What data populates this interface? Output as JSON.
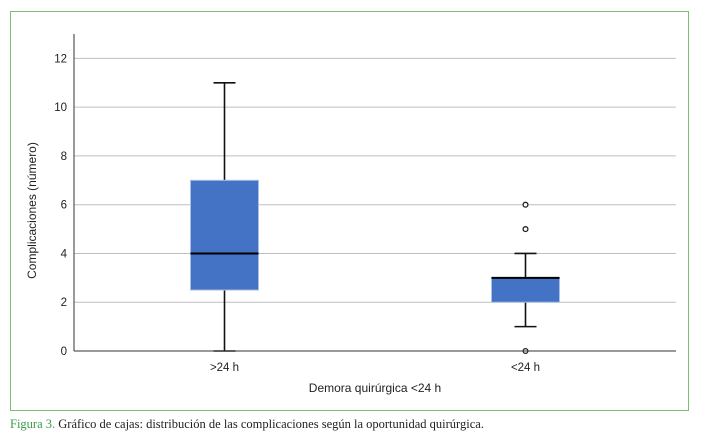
{
  "caption": {
    "label": "Figura 3.",
    "text": " Gráfico de cajas: distribución de las complicaciones según la oportunidad quirúrgica."
  },
  "colors": {
    "frame": "#7bbf72",
    "box": "#4472c4",
    "grid": "#bfbfbf",
    "caption_label": "#3a9a4a"
  },
  "chart_data": {
    "type": "box",
    "xlabel": "Demora quirúrgica <24 h",
    "ylabel": "Complicaciones (número)",
    "ylim": [
      0,
      13
    ],
    "yticks": [
      0,
      2,
      4,
      6,
      8,
      10,
      12
    ],
    "grid": true,
    "categories": [
      ">24 h",
      "<24 h"
    ],
    "boxes": [
      {
        "category": ">24 h",
        "min": 0,
        "q1": 2.5,
        "median": 4,
        "q3": 7,
        "max": 11,
        "outliers": []
      },
      {
        "category": "<24 h",
        "min": 1,
        "q1": 2,
        "median": 3,
        "q3": 3,
        "max": 4,
        "outliers": [
          0,
          5,
          6
        ]
      }
    ]
  }
}
